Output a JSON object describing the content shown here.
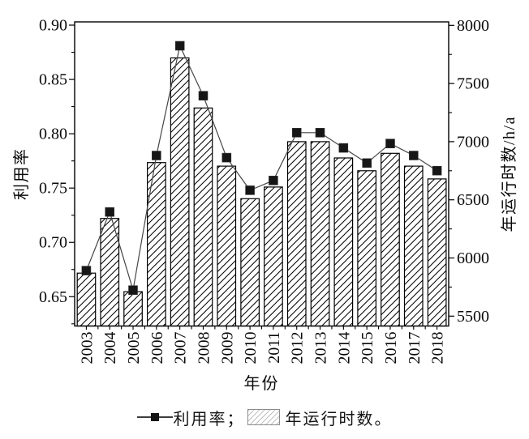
{
  "figure": {
    "background": "#ffffff",
    "ink_color": "#000000",
    "line_color": "#454545",
    "marker_color": "#161616",
    "legend_swatch_border": "#8a8a8a",
    "legend_swatch_hatch": "#a6a6a6"
  },
  "chart_data": {
    "type": "combo-bar-line",
    "title": "",
    "categories": [
      "2003",
      "2004",
      "2005",
      "2006",
      "2007",
      "2008",
      "2009",
      "2010",
      "2011",
      "2012",
      "2013",
      "2014",
      "2015",
      "2016",
      "2017",
      "2018"
    ],
    "series": [
      {
        "name": "利用率",
        "type": "line",
        "axis": "left",
        "marker": "filled-square",
        "values": [
          0.674,
          0.728,
          0.656,
          0.78,
          0.881,
          0.835,
          0.778,
          0.748,
          0.757,
          0.801,
          0.801,
          0.787,
          0.773,
          0.791,
          0.78,
          0.766
        ]
      },
      {
        "name": "年运行时数",
        "type": "bar",
        "axis": "right",
        "fill": "diagonal-hatch",
        "values": [
          5870,
          6340,
          5710,
          6820,
          7720,
          7290,
          6790,
          6510,
          6610,
          7000,
          7000,
          6860,
          6750,
          6900,
          6790,
          6680
        ]
      }
    ],
    "left_axis": {
      "label": "利用率",
      "range": [
        0.623,
        0.903
      ],
      "major_ticks": [
        0.65,
        0.7,
        0.75,
        0.8,
        0.85,
        0.9
      ],
      "minor_ticks": [
        0.625,
        0.675,
        0.725,
        0.775,
        0.825,
        0.875
      ],
      "decimals": 2
    },
    "right_axis": {
      "label": "年运行时数/h/a",
      "range": [
        5415,
        8030
      ],
      "major_ticks": [
        5500,
        6000,
        6500,
        7000,
        7500,
        8000
      ],
      "minor_ticks": [
        5750,
        6250,
        6750,
        7250,
        7750
      ],
      "decimals": 0
    },
    "x_axis": {
      "label": "年份"
    },
    "grid": false,
    "legend": {
      "position": "bottom",
      "entries": [
        {
          "label": "利用率；",
          "glyph": "line-with-square-marker"
        },
        {
          "label": "年运行时数。",
          "glyph": "hatched-box"
        }
      ]
    }
  }
}
